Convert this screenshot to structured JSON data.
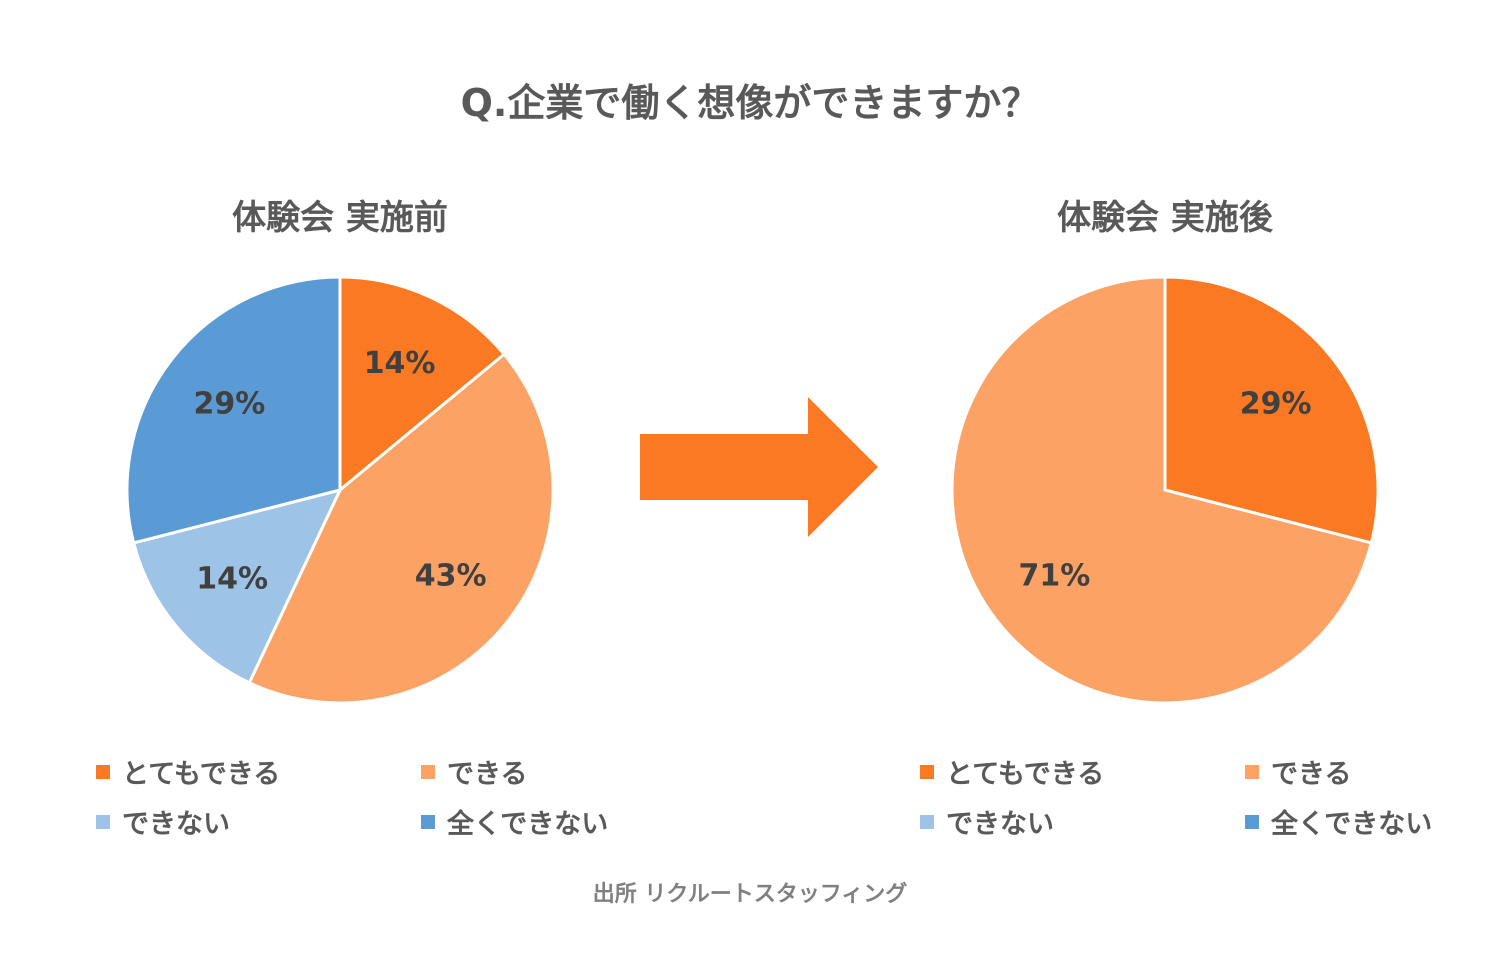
{
  "title": "Q.企業で働く想像ができますか？",
  "source_text": "出所 リクルートスタッフィング",
  "categories": [
    "とてもできる",
    "できる",
    "できない",
    "全くできない"
  ],
  "colors": [
    "#FB7923",
    "#FCA265",
    "#9DC3E6",
    "#5B9BD5"
  ],
  "chart_data": [
    {
      "type": "pie",
      "title": "体験会 実施前",
      "categories": [
        "とてもできる",
        "できる",
        "できない",
        "全くできない"
      ],
      "values": [
        14,
        43,
        14,
        29
      ],
      "labels": [
        "14%",
        "43%",
        "14%",
        "29%"
      ],
      "legend": "bottom"
    },
    {
      "type": "pie",
      "title": "体験会 実施後",
      "categories": [
        "とてもできる",
        "できる",
        "できない",
        "全くできない"
      ],
      "values": [
        29,
        71,
        0,
        0
      ],
      "labels": [
        "29%",
        "71%",
        "",
        ""
      ],
      "legend": "bottom"
    }
  ]
}
